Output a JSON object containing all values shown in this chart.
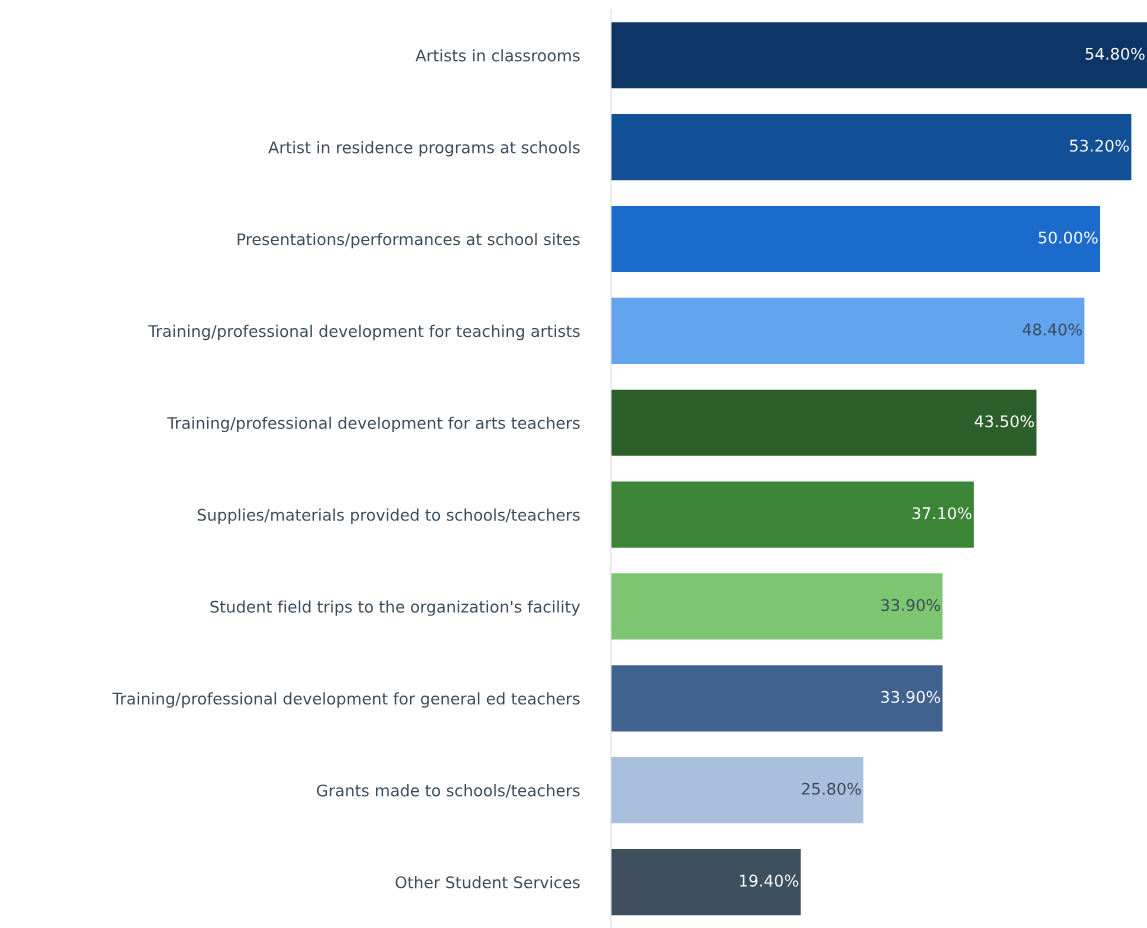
{
  "chart_data": {
    "type": "bar",
    "orientation": "horizontal",
    "categories": [
      "Artists in classrooms",
      "Artist in residence programs at schools",
      "Presentations/performances at school sites",
      "Training/professional development for teaching artists",
      "Training/professional development for arts teachers",
      "Supplies/materials provided to schools/teachers",
      "Student field trips to the organization's facility",
      "Training/professional development for general ed teachers",
      "Grants made to schools/teachers",
      "Other Student Services"
    ],
    "values": [
      54.8,
      53.2,
      50.0,
      48.4,
      43.5,
      37.1,
      33.9,
      33.9,
      25.8,
      19.4
    ],
    "value_labels": [
      "54.80%",
      "53.20%",
      "50.00%",
      "48.40%",
      "43.50%",
      "37.10%",
      "33.90%",
      "33.90%",
      "25.80%",
      "19.40%"
    ],
    "colors": [
      "#0d3566",
      "#114f96",
      "#1a6bcb",
      "#62a4ee",
      "#2d5f2a",
      "#3c8436",
      "#7cc671",
      "#3f638e",
      "#a9bfdc",
      "#3e5060"
    ],
    "grid": false,
    "legend": false
  }
}
